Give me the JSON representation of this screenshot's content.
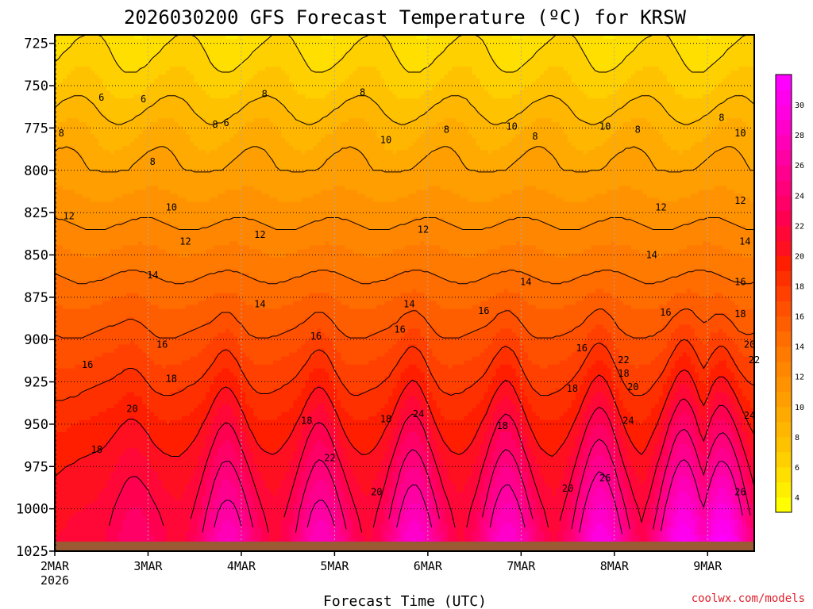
{
  "chart_data": {
    "type": "heatmap",
    "title": "2026030200 GFS Forecast Temperature (ºC) for KRSW",
    "xlabel": "Forecast Time (UTC)",
    "ylabel": "",
    "credit": "coolwx.com/models",
    "y_axis": {
      "ticks": [
        "725",
        "750",
        "775",
        "800",
        "825",
        "850",
        "875",
        "900",
        "925",
        "950",
        "975",
        "1000",
        "1025"
      ],
      "range": [
        720,
        1025
      ],
      "inverted": true
    },
    "x_axis": {
      "ticks": [
        "2MAR",
        "3MAR",
        "4MAR",
        "5MAR",
        "6MAR",
        "7MAR",
        "8MAR",
        "9MAR"
      ],
      "first_tick_year": "2026",
      "range_days": [
        0,
        7.5
      ]
    },
    "colorbar": {
      "labels": [
        "4",
        "6",
        "8",
        "10",
        "12",
        "14",
        "16",
        "18",
        "20",
        "22",
        "24",
        "26",
        "28",
        "30"
      ],
      "levels": [
        3,
        4,
        5,
        6,
        7,
        8,
        9,
        10,
        11,
        12,
        13,
        14,
        15,
        16,
        17,
        18,
        19,
        20,
        21,
        22,
        23,
        24,
        25,
        26,
        27,
        28,
        29,
        30,
        31,
        32
      ],
      "colors": [
        "#ffff00",
        "#ffee00",
        "#ffdf00",
        "#ffd000",
        "#ffc200",
        "#ffb600",
        "#ffaa00",
        "#ff9e00",
        "#ff9200",
        "#ff8600",
        "#ff7a00",
        "#ff6c00",
        "#ff5e00",
        "#ff5000",
        "#ff4000",
        "#ff3000",
        "#ff1e00",
        "#ff1020",
        "#ff0838",
        "#ff0050",
        "#ff0066",
        "#ff007a",
        "#ff008e",
        "#ff00a2",
        "#ff00b6",
        "#ff00ca",
        "#ff00de",
        "#ff00ee",
        "#ff00ff"
      ]
    },
    "profile": {
      "pressure_hpa": [
        720,
        750,
        775,
        800,
        825,
        850,
        875,
        900,
        925,
        950,
        975,
        1000,
        1025
      ],
      "temp_c": [
        5.5,
        7.0,
        8.8,
        10.2,
        11.6,
        13.2,
        14.8,
        16.3,
        17.7,
        19.0,
        20.0,
        20.7,
        21.0
      ]
    },
    "diurnal": {
      "peak_days": [
        0.85,
        1.85,
        2.85,
        3.85,
        4.85,
        5.85,
        6.75,
        7.15
      ],
      "peak_width_days": 0.22,
      "surface_max_c": [
        24,
        28,
        28,
        29,
        29,
        30,
        31,
        31
      ]
    },
    "contour_labels": [
      {
        "text": "6",
        "x": 0.5,
        "p": 757
      },
      {
        "text": "6",
        "x": 0.95,
        "p": 758
      },
      {
        "text": "8",
        "x": 0.07,
        "p": 778
      },
      {
        "text": "8",
        "x": 1.05,
        "p": 795
      },
      {
        "text": "8",
        "x": 1.72,
        "p": 773
      },
      {
        "text": "6",
        "x": 1.84,
        "p": 772
      },
      {
        "text": "8",
        "x": 2.25,
        "p": 755
      },
      {
        "text": "8",
        "x": 3.3,
        "p": 754
      },
      {
        "text": "8",
        "x": 4.2,
        "p": 776
      },
      {
        "text": "8",
        "x": 5.15,
        "p": 780
      },
      {
        "text": "8",
        "x": 6.25,
        "p": 776
      },
      {
        "text": "8",
        "x": 7.15,
        "p": 769
      },
      {
        "text": "10",
        "x": 3.55,
        "p": 782
      },
      {
        "text": "10",
        "x": 4.9,
        "p": 774
      },
      {
        "text": "10",
        "x": 5.9,
        "p": 774
      },
      {
        "text": "10",
        "x": 7.35,
        "p": 778
      },
      {
        "text": "10",
        "x": 1.25,
        "p": 822
      },
      {
        "text": "12",
        "x": 0.15,
        "p": 827
      },
      {
        "text": "12",
        "x": 1.4,
        "p": 842
      },
      {
        "text": "12",
        "x": 2.2,
        "p": 838
      },
      {
        "text": "12",
        "x": 3.95,
        "p": 835
      },
      {
        "text": "12",
        "x": 6.5,
        "p": 822
      },
      {
        "text": "12",
        "x": 7.35,
        "p": 818
      },
      {
        "text": "14",
        "x": 1.05,
        "p": 862
      },
      {
        "text": "14",
        "x": 2.2,
        "p": 879
      },
      {
        "text": "14",
        "x": 3.8,
        "p": 879
      },
      {
        "text": "14",
        "x": 5.05,
        "p": 866
      },
      {
        "text": "14",
        "x": 6.4,
        "p": 850
      },
      {
        "text": "14",
        "x": 7.4,
        "p": 842
      },
      {
        "text": "16",
        "x": 0.35,
        "p": 915
      },
      {
        "text": "16",
        "x": 1.15,
        "p": 903
      },
      {
        "text": "16",
        "x": 2.8,
        "p": 898
      },
      {
        "text": "16",
        "x": 3.7,
        "p": 894
      },
      {
        "text": "16",
        "x": 4.6,
        "p": 883
      },
      {
        "text": "16",
        "x": 5.65,
        "p": 905
      },
      {
        "text": "16",
        "x": 6.55,
        "p": 884
      },
      {
        "text": "16",
        "x": 7.35,
        "p": 866
      },
      {
        "text": "18",
        "x": 1.25,
        "p": 923
      },
      {
        "text": "18",
        "x": 0.45,
        "p": 965
      },
      {
        "text": "18",
        "x": 2.7,
        "p": 948
      },
      {
        "text": "18",
        "x": 3.55,
        "p": 947
      },
      {
        "text": "18",
        "x": 4.8,
        "p": 951
      },
      {
        "text": "18",
        "x": 5.55,
        "p": 929
      },
      {
        "text": "18",
        "x": 6.1,
        "p": 920
      },
      {
        "text": "18",
        "x": 7.35,
        "p": 885
      },
      {
        "text": "20",
        "x": 0.83,
        "p": 941
      },
      {
        "text": "20",
        "x": 3.45,
        "p": 990
      },
      {
        "text": "20",
        "x": 5.5,
        "p": 988
      },
      {
        "text": "20",
        "x": 6.2,
        "p": 928
      },
      {
        "text": "20",
        "x": 7.45,
        "p": 903
      },
      {
        "text": "22",
        "x": 2.95,
        "p": 970
      },
      {
        "text": "22",
        "x": 6.1,
        "p": 912
      },
      {
        "text": "22",
        "x": 7.5,
        "p": 912
      },
      {
        "text": "24",
        "x": 3.9,
        "p": 944
      },
      {
        "text": "24",
        "x": 6.15,
        "p": 948
      },
      {
        "text": "24",
        "x": 7.45,
        "p": 945
      },
      {
        "text": "26",
        "x": 5.9,
        "p": 982
      },
      {
        "text": "26",
        "x": 7.35,
        "p": 990
      }
    ]
  }
}
